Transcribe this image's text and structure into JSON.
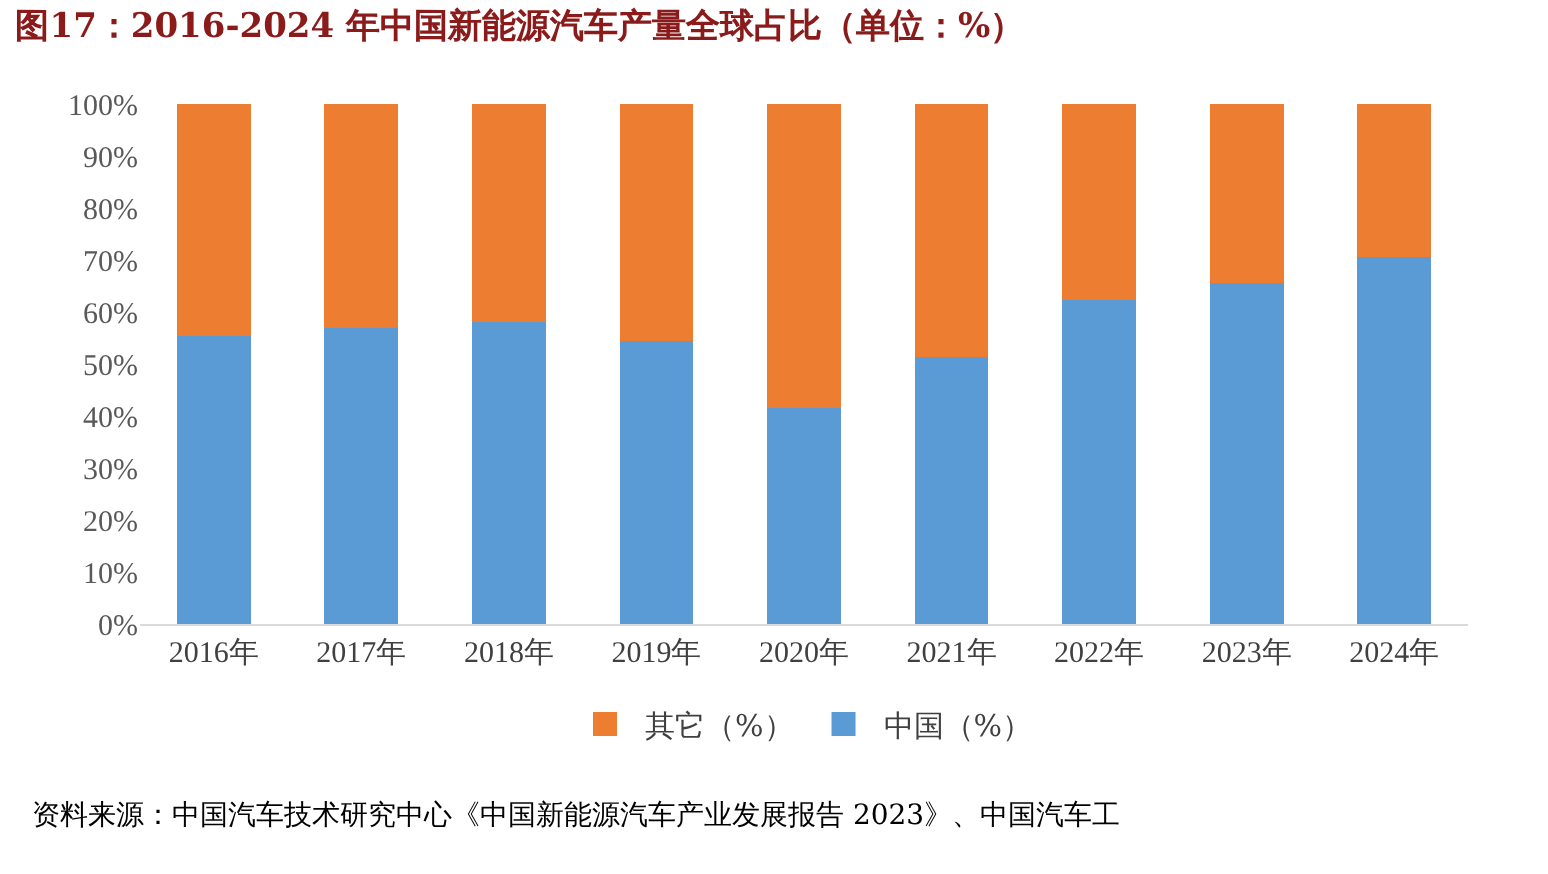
{
  "chart_data": {
    "type": "bar",
    "title": "图17：2016-2024 年中国新能源汽车产量全球占比（单位：%）",
    "categories": [
      "2016年",
      "2017年",
      "2018年",
      "2019年",
      "2020年",
      "2021年",
      "2022年",
      "2023年",
      "2024年"
    ],
    "stacked": true,
    "series": [
      {
        "name": "中国（%）",
        "color": "#5b9bd5",
        "values": [
          55.3,
          56.9,
          58.0,
          54.5,
          41.6,
          51.4,
          62.4,
          65.5,
          70.6
        ]
      },
      {
        "name": "其它（%）",
        "color": "#ed7d31",
        "values": [
          44.7,
          43.1,
          42.0,
          45.5,
          58.4,
          48.6,
          37.6,
          34.5,
          29.4
        ]
      }
    ],
    "ylim": [
      0,
      100
    ],
    "yticks": [
      {
        "value": 0,
        "label": "0%"
      },
      {
        "value": 10,
        "label": "10%"
      },
      {
        "value": 20,
        "label": "20%"
      },
      {
        "value": 30,
        "label": "30%"
      },
      {
        "value": 40,
        "label": "40%"
      },
      {
        "value": 50,
        "label": "50%"
      },
      {
        "value": 60,
        "label": "60%"
      },
      {
        "value": 70,
        "label": "70%"
      },
      {
        "value": 80,
        "label": "80%"
      },
      {
        "value": 90,
        "label": "90%"
      },
      {
        "value": 100,
        "label": "100%"
      }
    ],
    "grid": false,
    "legend": "bottom",
    "annotations": [
      "资料来源：中国汽车技术研究中心《中国新能源汽车产业发展报告 2023》、中国汽车工"
    ]
  }
}
